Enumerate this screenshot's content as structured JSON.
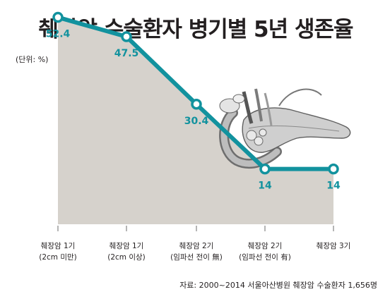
{
  "title": "췌장암 수술환자 병기별 5년 생존율",
  "unit_label": "(단위: %)",
  "source": "자료: 2000~2014 서울아산병원 췌장암 수술환자 1,656명",
  "colors": {
    "line": "#12929e",
    "area": "#d6d2cc",
    "marker_fill": "#ffffff",
    "axis": "#6b6b6b"
  },
  "chart_data": {
    "type": "line",
    "categories": [
      [
        "췌장암 1기",
        "(2cm 미만)"
      ],
      [
        "췌장암 1기",
        "(2cm 이상)"
      ],
      [
        "췌장암 2기",
        "(임파선 전이 無)"
      ],
      [
        "췌장암 2기",
        "(임파선 전이 有)"
      ],
      [
        "췌장암 3기",
        ""
      ]
    ],
    "values": [
      52.4,
      47.5,
      30.4,
      14,
      14
    ],
    "value_labels": [
      "52.4",
      "47.5",
      "30.4",
      "14",
      "14"
    ],
    "ylim": [
      0,
      60
    ],
    "grid": false,
    "legend": "none",
    "illustration": "pancreas-illustration"
  }
}
